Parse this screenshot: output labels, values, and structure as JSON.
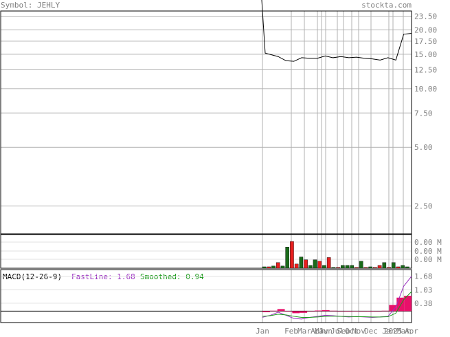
{
  "header": {
    "symbol_label": "Symbol: JEHLY",
    "site": "stockta.com"
  },
  "colors": {
    "grid": "#b0b0b0",
    "border": "#000000",
    "price_line": "#000000",
    "axis_text": "#808080",
    "header_text": "#808080",
    "volume_up": "#1a6b1a",
    "volume_down": "#e81f1f",
    "fast_line": "#9b30c0",
    "smoothed_line": "#1a9a1a",
    "histogram": "#e8106a"
  },
  "chart_data": [
    {
      "type": "line",
      "name": "price",
      "y_scale": "log",
      "ylim": [
        1.8,
        25
      ],
      "y_ticks": [
        "23.50",
        "20.00",
        "17.50",
        "15.00",
        "12.50",
        "10.00",
        "7.50",
        "5.00",
        "2.50"
      ],
      "x": [
        "Jan",
        "Jan",
        "Jan",
        "Feb",
        "Feb",
        "Mar",
        "Apr",
        "May",
        "Jun",
        "Jul",
        "Aug",
        "Sep",
        "Oct",
        "Nov",
        "Dec",
        "Jan",
        "Feb",
        "Mar",
        "Mar",
        "Apr"
      ],
      "values": [
        60,
        15.2,
        14.6,
        13.9,
        13.8,
        14.4,
        14.3,
        14.3,
        14.7,
        14.4,
        14.6,
        14.4,
        14.5,
        14.3,
        14.2,
        14.0,
        14.4,
        14.0,
        19.0,
        19.2
      ]
    },
    {
      "type": "bar",
      "name": "volume",
      "y_ticks": [
        "0.00 M",
        "0.00 M",
        "0.00 M"
      ],
      "bars": [
        {
          "v": 0.05,
          "c": "up"
        },
        {
          "v": 0.05,
          "c": "down"
        },
        {
          "v": 0.08,
          "c": "up"
        },
        {
          "v": 0.2,
          "c": "down"
        },
        {
          "v": 0.08,
          "c": "up"
        },
        {
          "v": 0.75,
          "c": "up"
        },
        {
          "v": 0.95,
          "c": "down"
        },
        {
          "v": 0.15,
          "c": "down"
        },
        {
          "v": 0.4,
          "c": "up"
        },
        {
          "v": 0.3,
          "c": "down"
        },
        {
          "v": 0.1,
          "c": "up"
        },
        {
          "v": 0.3,
          "c": "up"
        },
        {
          "v": 0.25,
          "c": "down"
        },
        {
          "v": 0.1,
          "c": "up"
        },
        {
          "v": 0.38,
          "c": "down"
        },
        {
          "v": 0.03,
          "c": "up"
        },
        {
          "v": 0.03,
          "c": "down"
        },
        {
          "v": 0.1,
          "c": "up"
        },
        {
          "v": 0.1,
          "c": "up"
        },
        {
          "v": 0.1,
          "c": "up"
        },
        {
          "v": 0.03,
          "c": "down"
        },
        {
          "v": 0.25,
          "c": "up"
        },
        {
          "v": 0.03,
          "c": "down"
        },
        {
          "v": 0.05,
          "c": "up"
        },
        {
          "v": 0.03,
          "c": "down"
        },
        {
          "v": 0.1,
          "c": "down"
        },
        {
          "v": 0.2,
          "c": "up"
        },
        {
          "v": 0.03,
          "c": "down"
        },
        {
          "v": 0.2,
          "c": "up"
        },
        {
          "v": 0.05,
          "c": "down"
        },
        {
          "v": 0.1,
          "c": "up"
        },
        {
          "v": 0.05,
          "c": "up"
        }
      ]
    },
    {
      "type": "line",
      "name": "macd",
      "title": "MACD(12-26-9)",
      "fast_label": "FastLine: 1.68",
      "smoothed_label": "Smoothed: 0.94",
      "ylim": [
        -0.55,
        2.0
      ],
      "y_ticks": [
        "1.68",
        "1.03",
        "0.38"
      ],
      "series": [
        {
          "name": "FastLine",
          "values": [
            -0.3,
            -0.2,
            -0.05,
            -0.2,
            -0.35,
            -0.38,
            -0.3,
            -0.25,
            -0.2,
            -0.22,
            -0.25,
            -0.28,
            -0.26,
            -0.28,
            -0.3,
            -0.28,
            -0.25,
            0.2,
            1.2,
            1.68
          ]
        },
        {
          "name": "Smoothed",
          "values": [
            -0.25,
            -0.22,
            -0.15,
            -0.18,
            -0.25,
            -0.3,
            -0.3,
            -0.28,
            -0.25,
            -0.24,
            -0.25,
            -0.26,
            -0.27,
            -0.27,
            -0.28,
            -0.28,
            -0.27,
            -0.1,
            0.55,
            0.94
          ]
        },
        {
          "name": "Histogram",
          "values": [
            -0.05,
            0.02,
            0.1,
            -0.02,
            -0.1,
            -0.08,
            0.0,
            0.03,
            0.05,
            0.02,
            0.0,
            -0.02,
            0.01,
            -0.01,
            -0.02,
            0.0,
            0.02,
            0.3,
            0.65,
            0.74
          ]
        }
      ]
    }
  ],
  "x_axis": {
    "labels": [
      "Jan",
      "Feb",
      "Mar",
      "Apr",
      "May",
      "Jun",
      "Jul",
      "Sep",
      "Oct",
      "Nov",
      "Dec",
      "Jan",
      "2025",
      "Mar",
      "Apr"
    ]
  }
}
